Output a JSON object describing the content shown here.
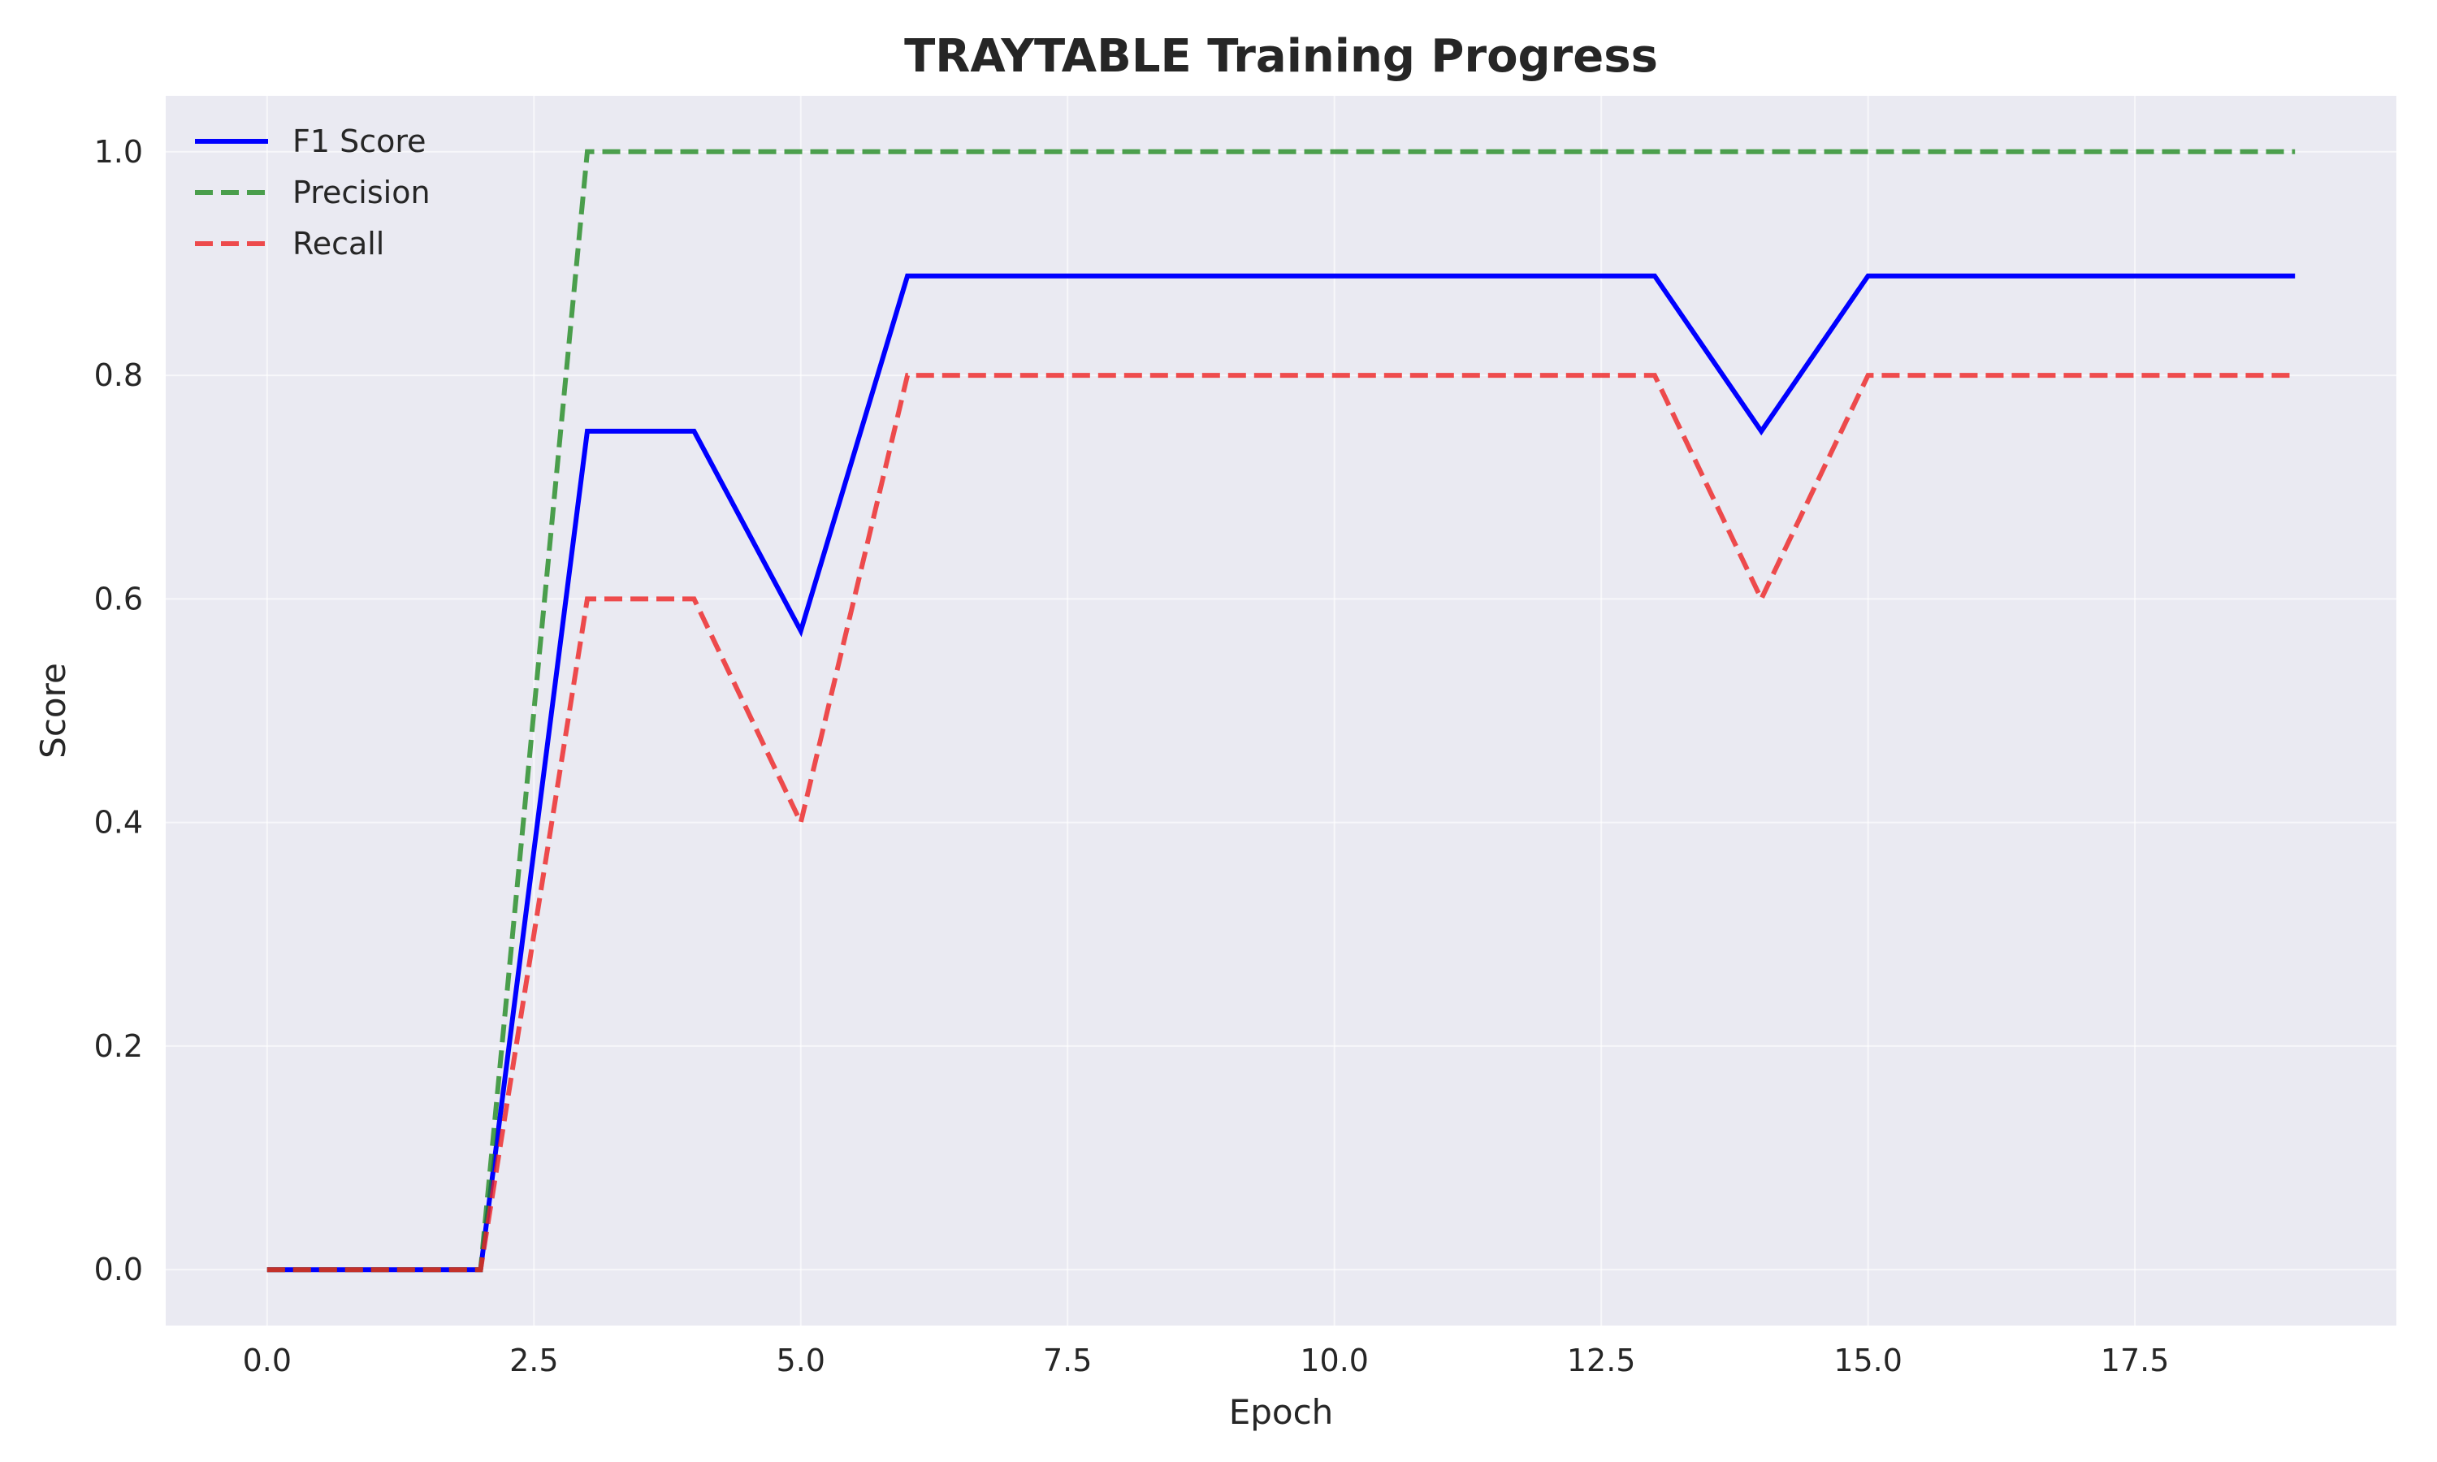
{
  "chart_data": {
    "type": "line",
    "title": "TRAYTABLE Training Progress",
    "xlabel": "Epoch",
    "ylabel": "Score",
    "xlim": [
      -0.95,
      19.95
    ],
    "ylim": [
      -0.05,
      1.05
    ],
    "x_ticks": [
      0,
      2.5,
      5,
      7.5,
      10,
      12.5,
      15,
      17.5
    ],
    "x_tick_labels": [
      "0.0",
      "2.5",
      "5.0",
      "7.5",
      "10.0",
      "12.5",
      "15.0",
      "17.5"
    ],
    "y_ticks": [
      0,
      0.2,
      0.4,
      0.6,
      0.8,
      1.0
    ],
    "y_tick_labels": [
      "0.0",
      "0.2",
      "0.4",
      "0.6",
      "0.8",
      "1.0"
    ],
    "grid": true,
    "legend_position": "top-left",
    "background_color": "#eaeaf2",
    "x": [
      0,
      1,
      2,
      3,
      4,
      5,
      6,
      7,
      8,
      9,
      10,
      11,
      12,
      13,
      14,
      15,
      16,
      17,
      18,
      19
    ],
    "series": [
      {
        "name": "F1 Score",
        "color": "#0000ff",
        "style": "solid",
        "values": [
          0,
          0,
          0,
          0.75,
          0.75,
          0.5714,
          0.8889,
          0.8889,
          0.8889,
          0.8889,
          0.8889,
          0.8889,
          0.8889,
          0.8889,
          0.75,
          0.8889,
          0.8889,
          0.8889,
          0.8889,
          0.8889
        ]
      },
      {
        "name": "Precision",
        "color": "#228b22",
        "style": "dashed",
        "values": [
          0,
          0,
          0,
          1.0,
          1.0,
          1.0,
          1.0,
          1.0,
          1.0,
          1.0,
          1.0,
          1.0,
          1.0,
          1.0,
          1.0,
          1.0,
          1.0,
          1.0,
          1.0,
          1.0
        ]
      },
      {
        "name": "Recall",
        "color": "#ee2222",
        "style": "dashed",
        "values": [
          0,
          0,
          0,
          0.6,
          0.6,
          0.4,
          0.8,
          0.8,
          0.8,
          0.8,
          0.8,
          0.8,
          0.8,
          0.8,
          0.6,
          0.8,
          0.8,
          0.8,
          0.8,
          0.8
        ]
      }
    ]
  }
}
